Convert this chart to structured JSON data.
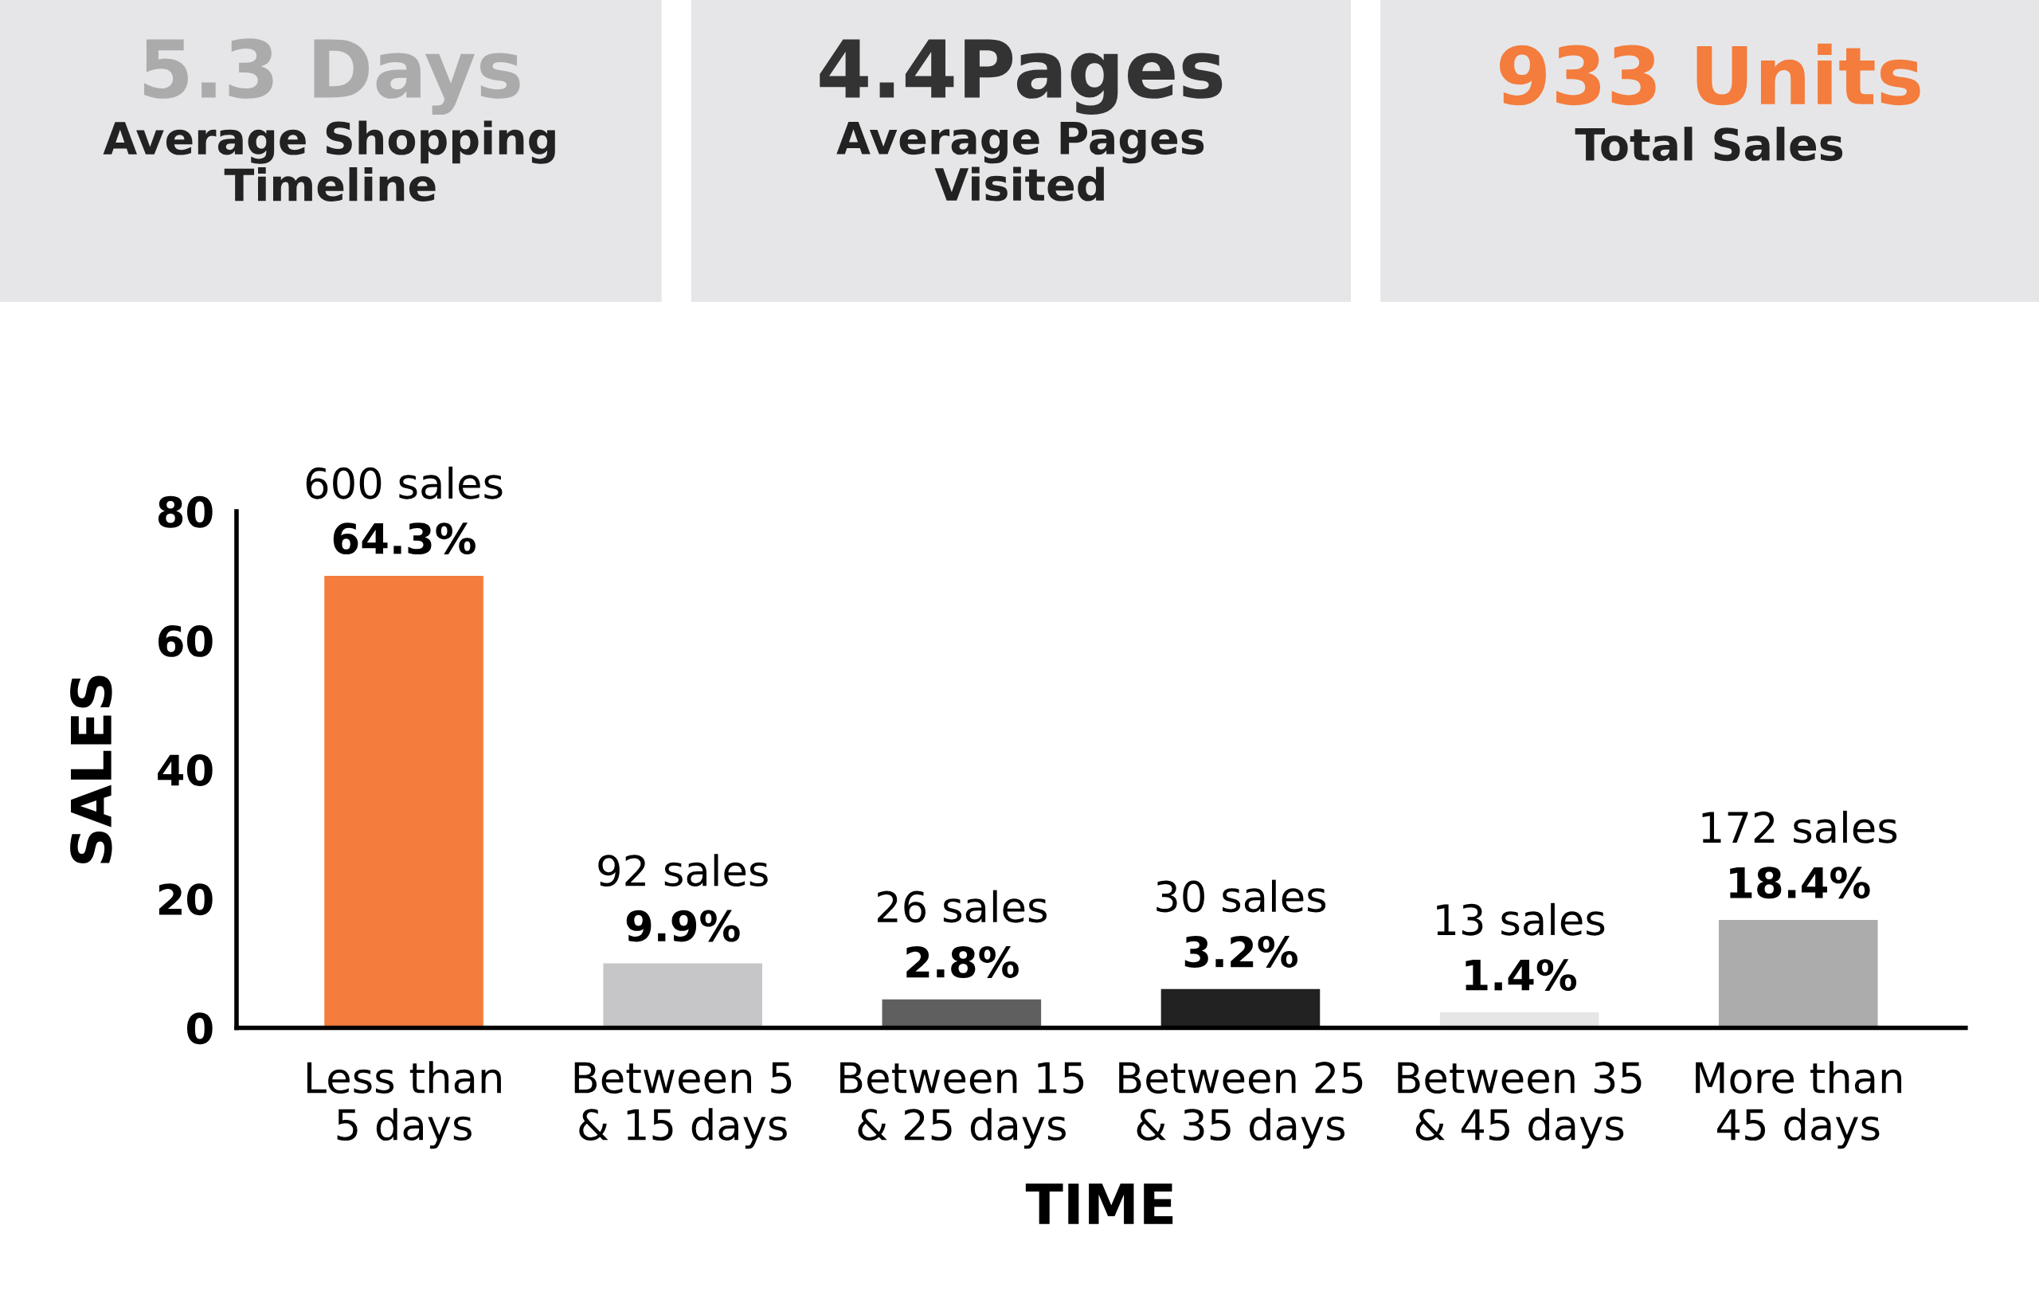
{
  "chart_data": [
    {
      "type": "other",
      "title": "5.3 Days",
      "subtitle": "Average Shopping\nTimeline",
      "color": "#ababab"
    },
    {
      "type": "other",
      "title": "4.4Pages",
      "subtitle": "Average Pages\nVisited",
      "color": "#333333"
    },
    {
      "type": "other",
      "title": "933 Units",
      "subtitle": "Total Sales",
      "color": "#f47c3c"
    },
    {
      "type": "bar",
      "xlabel": "TIME",
      "ylabel": "SALES",
      "categories": [
        "Less than\n5 days",
        "Between 5\n& 15 days",
        "Between 15\n& 25 days",
        "Between 25\n& 35 days",
        "Between 35\n& 45 days",
        "More than\n45 days"
      ],
      "values": [
        70,
        10,
        4.4,
        6,
        2.4,
        16.7
      ],
      "colors": [
        "#f47c3c",
        "#c6c6c8",
        "#5f5f5f",
        "#222222",
        "#e6e6e6",
        "#acacac"
      ],
      "annotations": [
        {
          "text": "600 sales",
          "x": "Less than\n5 days",
          "y": 70
        },
        {
          "text": "64.3%",
          "x": "Less than\n5 days",
          "y": 70
        },
        {
          "text": "92 sales",
          "x": "Between 5\n& 15 days",
          "y": 10
        },
        {
          "text": "9.9%",
          "x": "Between 5\n& 15 days",
          "y": 10
        },
        {
          "text": "26 sales",
          "x": "Between 15\n& 25 days",
          "y": 4.4
        },
        {
          "text": "2.8%",
          "x": "Between 15\n& 25 days",
          "y": 4.4
        },
        {
          "text": "30 sales",
          "x": "Between 25\n& 35 days",
          "y": 6
        },
        {
          "text": "3.2%",
          "x": "Between 25\n& 35 days",
          "y": 6
        },
        {
          "text": "13 sales",
          "x": "Between 35\n& 45 days",
          "y": 2.4
        },
        {
          "text": "1.4%",
          "x": "Between 35\n& 45 days",
          "y": 2.4
        },
        {
          "text": "172 sales",
          "x": "More than\n45 days",
          "y": 16.7
        },
        {
          "text": "18.4%",
          "x": "More than\n45 days",
          "y": 16.7
        }
      ],
      "ylim": [
        0,
        80
      ],
      "yticks": [
        0,
        20,
        40,
        60,
        80
      ],
      "grid": false,
      "legend": false
    }
  ]
}
